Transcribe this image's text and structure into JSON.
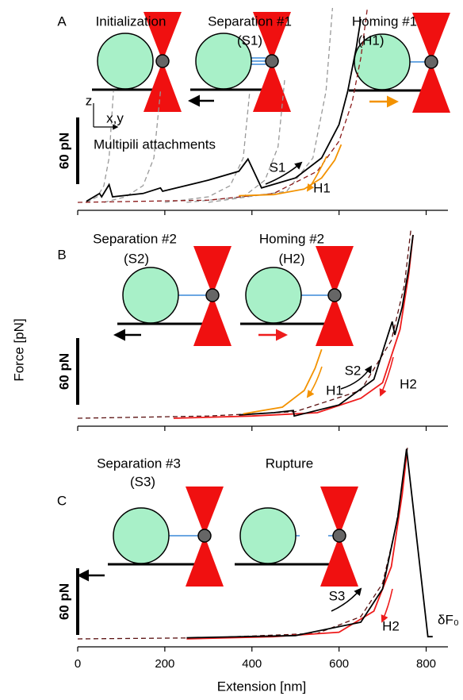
{
  "chart_data": [
    {
      "type": "line",
      "xlim": [
        0,
        850
      ],
      "xticks": [
        0,
        200,
        400,
        600,
        800
      ],
      "ylim": [
        0,
        175
      ],
      "scale_bar": {
        "value": 60,
        "label": "60 pN"
      },
      "annotations": [
        "A",
        "Initialization",
        "Separation #1",
        "(S1)",
        "Homing #1",
        "(H1)",
        "z",
        "x,y",
        "Multipili attachments",
        "S1",
        "H1"
      ],
      "series": [
        {
          "color": "#999999",
          "dash": true,
          "x": [
            20,
            45,
            60,
            72,
            82
          ],
          "values": [
            0,
            5,
            15,
            40,
            100
          ]
        },
        {
          "color": "#999999",
          "dash": true,
          "x": [
            60,
            110,
            150,
            175,
            190
          ],
          "values": [
            0,
            5,
            15,
            40,
            100
          ]
        },
        {
          "color": "#999999",
          "dash": true,
          "x": [
            200,
            300,
            350,
            380,
            395
          ],
          "values": [
            0,
            5,
            15,
            40,
            100
          ]
        },
        {
          "color": "#999999",
          "dash": true,
          "x": [
            250,
            380,
            430,
            460,
            475
          ],
          "values": [
            0,
            5,
            20,
            50,
            110
          ]
        },
        {
          "color": "#999999",
          "dash": true,
          "x": [
            300,
            480,
            540,
            570,
            585
          ],
          "values": [
            0,
            10,
            40,
            100,
            175
          ]
        },
        {
          "color": "#8b1a1a",
          "dash": true,
          "x": [
            0,
            300,
            450,
            550,
            600,
            630,
            650,
            665
          ],
          "values": [
            0,
            2,
            8,
            28,
            55,
            90,
            130,
            175
          ]
        },
        {
          "color": "#000000",
          "dash": false,
          "x": [
            20,
            50,
            55,
            72,
            80,
            150,
            190,
            195,
            300,
            370,
            391,
            422,
            500,
            560,
            600,
            620,
            640,
            650
          ],
          "values": [
            1,
            8,
            5,
            16,
            5,
            8,
            13,
            10,
            20,
            28,
            39,
            13,
            22,
            40,
            70,
            100,
            140,
            165
          ]
        },
        {
          "color": "#f39200",
          "dash": false,
          "x": [
            370,
            450,
            520,
            560,
            590,
            605
          ],
          "values": [
            6,
            7,
            12,
            22,
            38,
            52
          ]
        }
      ]
    },
    {
      "type": "line",
      "xlim": [
        0,
        850
      ],
      "xticks": [
        0,
        200,
        400,
        600,
        800
      ],
      "ylim": [
        0,
        170
      ],
      "ylabel": "Force [pN]",
      "scale_bar": {
        "value": 60,
        "label": "60 pN"
      },
      "annotations": [
        "B",
        "Separation #2",
        "(S2)",
        "Homing #2",
        "(H2)",
        "S2",
        "H1",
        "H2"
      ],
      "series": [
        {
          "color": "#5a1010",
          "dash": true,
          "x": [
            0,
            300,
            500,
            650,
            720,
            750,
            765
          ],
          "values": [
            0,
            2,
            6,
            25,
            70,
            120,
            170
          ]
        },
        {
          "color": "#ee1c1c",
          "dash": false,
          "x": [
            220,
            400,
            550,
            650,
            700,
            740,
            760,
            770
          ],
          "values": [
            0,
            2,
            5,
            18,
            32,
            80,
            130,
            165
          ]
        },
        {
          "color": "#000000",
          "dash": false,
          "x": [
            370,
            450,
            495,
            497,
            600,
            680,
            722,
            728,
            745,
            760,
            770
          ],
          "values": [
            3,
            5,
            7,
            2,
            12,
            35,
            87,
            75,
            100,
            135,
            165
          ]
        },
        {
          "color": "#f39200",
          "dash": false,
          "x": [
            380,
            470,
            520,
            545,
            560
          ],
          "values": [
            4,
            10,
            25,
            45,
            62
          ]
        }
      ]
    },
    {
      "type": "line",
      "xlim": [
        0,
        850
      ],
      "xticks": [
        0,
        200,
        400,
        600,
        800
      ],
      "ylim": [
        0,
        175
      ],
      "xlabel": "Extension [nm]",
      "scale_bar": {
        "value": 60,
        "label": "60 pN"
      },
      "annotations": [
        "C",
        "Separation #3",
        "(S3)",
        "Rupture",
        "S3",
        "H2",
        "δF₀"
      ],
      "series": [
        {
          "color": "#5a1010",
          "dash": true,
          "x": [
            0,
            300,
            550,
            650,
            700,
            730,
            750,
            757
          ],
          "values": [
            0,
            1,
            5,
            20,
            50,
            100,
            150,
            172
          ]
        },
        {
          "color": "#ee1c1c",
          "dash": false,
          "x": [
            250,
            450,
            600,
            680,
            720,
            745,
            755
          ],
          "values": [
            0,
            2,
            6,
            25,
            65,
            130,
            165
          ]
        },
        {
          "color": "#000000",
          "dash": false,
          "x": [
            250,
            500,
            650,
            700,
            735,
            755,
            804,
            815
          ],
          "values": [
            1,
            3,
            15,
            45,
            110,
            171,
            2,
            2
          ]
        }
      ]
    }
  ]
}
